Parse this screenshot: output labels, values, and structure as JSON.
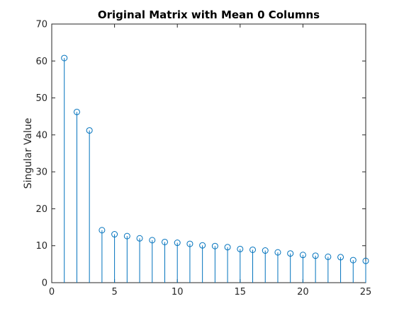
{
  "chart_data": {
    "type": "stem",
    "title": "Original Matrix with Mean 0 Columns",
    "xlabel": "",
    "ylabel": "Singular Value",
    "xlim": [
      0,
      25
    ],
    "ylim": [
      0,
      70
    ],
    "xticks": [
      0,
      5,
      10,
      15,
      20,
      25
    ],
    "yticks": [
      0,
      10,
      20,
      30,
      40,
      50,
      60,
      70
    ],
    "grid": false,
    "box": true,
    "color": "#0072BD",
    "marker": "circle",
    "x": [
      1,
      2,
      3,
      4,
      5,
      6,
      7,
      8,
      9,
      10,
      11,
      12,
      13,
      14,
      15,
      16,
      17,
      18,
      19,
      20,
      21,
      22,
      23,
      24,
      25
    ],
    "values": [
      60.8,
      46.2,
      41.2,
      14.2,
      13.1,
      12.6,
      12.0,
      11.5,
      11.0,
      10.8,
      10.5,
      10.1,
      9.9,
      9.6,
      9.1,
      8.9,
      8.7,
      8.2,
      7.9,
      7.5,
      7.3,
      7.0,
      6.9,
      6.1,
      5.9
    ]
  }
}
